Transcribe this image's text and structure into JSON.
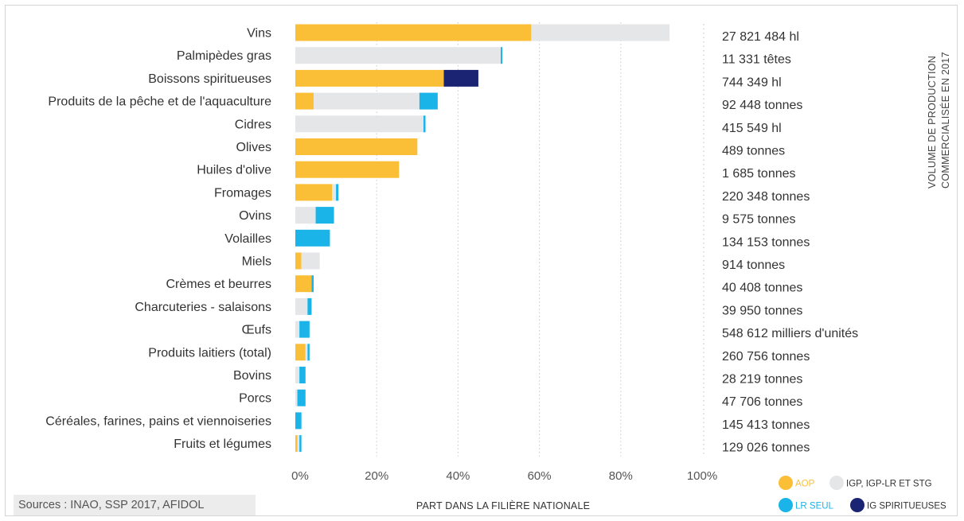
{
  "source": "Sources : INAO, SSP 2017, AFIDOL",
  "chart_data": {
    "type": "bar",
    "orientation": "horizontal",
    "stacked": true,
    "categories": [
      "Vins",
      "Palmipèdes gras",
      "Boissons spiritueuses",
      "Produits de la pêche et de l'aquaculture",
      "Cidres",
      "Olives",
      "Huiles d'olive",
      "Fromages",
      "Ovins",
      "Volailles",
      "Miels",
      "Crèmes et beurres",
      "Charcuteries - salaisons",
      "Œufs",
      "Produits laitiers (total)",
      "Bovins",
      "Porcs",
      "Céréales, farines, pains et viennoiseries",
      "Fruits et légumes"
    ],
    "series": [
      {
        "name": "AOP",
        "color": "#fbbf37",
        "values": [
          58,
          0,
          36.5,
          4.5,
          0,
          30,
          25.5,
          9,
          0,
          0,
          1.5,
          4,
          0,
          0,
          2.5,
          0,
          0,
          0,
          0.5
        ]
      },
      {
        "name": "IGP, IGP-LR ET STG",
        "color": "#e5e6e8",
        "values": [
          34,
          50.5,
          0,
          26,
          31.5,
          0,
          0,
          1,
          5,
          0,
          4.5,
          0,
          3,
          1,
          0.5,
          1,
          0.5,
          0,
          0.5
        ]
      },
      {
        "name": "LR SEUL",
        "color": "#1ab4e8",
        "values": [
          0,
          0.4,
          0,
          4.5,
          0.5,
          0,
          0,
          0.6,
          4.5,
          8.5,
          0,
          0.5,
          1,
          2.5,
          0.5,
          1.5,
          2,
          1.5,
          0.5
        ]
      },
      {
        "name": "IG SPIRITUEUSES",
        "color": "#1a2472",
        "values": [
          0,
          0,
          8.5,
          0,
          0,
          0,
          0,
          0,
          0,
          0,
          0,
          0,
          0,
          0,
          0,
          0,
          0,
          0,
          0
        ]
      }
    ],
    "volumes": [
      "27 821 484 hl",
      "11 331 têtes",
      "744 349 hl",
      "92 448 tonnes",
      "415 549 hl",
      "489 tonnes",
      "1 685 tonnes",
      "220 348 tonnes",
      "9 575 tonnes",
      "134 153 tonnes",
      "914 tonnes",
      "40 408 tonnes",
      "39 950 tonnes",
      "548 612 milliers d'unités",
      "260 756 tonnes",
      "28 219 tonnes",
      "47 706 tonnes",
      "145 413 tonnes",
      "129 026 tonnes"
    ],
    "xticks": [
      "0%",
      "20%",
      "40%",
      "60%",
      "80%",
      "100%"
    ],
    "xlim": [
      0,
      100
    ],
    "xlabel": "PART DANS LA FILIÈRE NATIONALE",
    "side_title": [
      "VOLUME DE PRODUCTION",
      "COMMERCIALISÉE EN 2017"
    ],
    "grid": true,
    "legend_position": "bottom-right"
  }
}
